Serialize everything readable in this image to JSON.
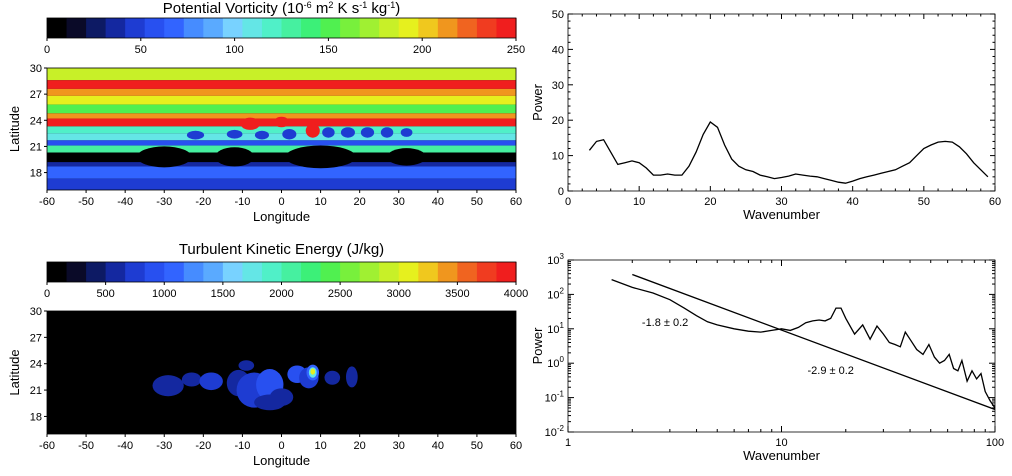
{
  "colorbar_colors": [
    "#000000",
    "#0a0a28",
    "#0d1a64",
    "#1428a0",
    "#1e3cd2",
    "#2850f0",
    "#3264ff",
    "#468cff",
    "#5aaaff",
    "#78d2ff",
    "#64e6e6",
    "#50f0c8",
    "#46f0a0",
    "#3cf078",
    "#50f050",
    "#78f03c",
    "#a0f032",
    "#c8f028",
    "#e6f01e",
    "#f0c81e",
    "#f0961e",
    "#f06420",
    "#f03c20",
    "#f01e1e"
  ],
  "charts": [
    {
      "id": "pv",
      "type": "heatmap",
      "title_parts": [
        "Potential Vorticity (10",
        "-6",
        " m",
        "2",
        " K s",
        "-1",
        " kg",
        "-1",
        ")"
      ],
      "colorbar": {
        "ticks": [
          "0",
          "50",
          "100",
          "150",
          "200",
          "250"
        ],
        "range": [
          0,
          255
        ]
      },
      "x": {
        "label": "Longitude",
        "range": [
          -60,
          60
        ],
        "ticks": [
          -60,
          -50,
          -40,
          -30,
          -20,
          -10,
          0,
          10,
          20,
          30,
          40,
          50,
          60
        ]
      },
      "y": {
        "label": "Latitude",
        "range": [
          16,
          30
        ],
        "ticks": [
          18,
          21,
          24,
          27,
          30
        ]
      },
      "bands": [
        {
          "lat_from": 28.6,
          "lat_to": 30.0,
          "color": "#c8f028"
        },
        {
          "lat_from": 27.6,
          "lat_to": 28.6,
          "color": "#f01e1e"
        },
        {
          "lat_from": 26.8,
          "lat_to": 27.6,
          "color": "#f0961e"
        },
        {
          "lat_from": 25.8,
          "lat_to": 26.8,
          "color": "#e6f01e"
        },
        {
          "lat_from": 24.8,
          "lat_to": 25.8,
          "color": "#50f050"
        },
        {
          "lat_from": 24.2,
          "lat_to": 24.8,
          "color": "#f0961e"
        },
        {
          "lat_from": 23.3,
          "lat_to": 24.2,
          "color": "#f01e1e"
        },
        {
          "lat_from": 22.5,
          "lat_to": 23.3,
          "color": "#50f0c8"
        },
        {
          "lat_from": 21.7,
          "lat_to": 22.5,
          "color": "#64e6e6"
        },
        {
          "lat_from": 21.1,
          "lat_to": 21.7,
          "color": "#2850f0"
        },
        {
          "lat_from": 20.3,
          "lat_to": 21.1,
          "color": "#46f0a0"
        },
        {
          "lat_from": 19.2,
          "lat_to": 20.3,
          "color": "#000000"
        },
        {
          "lat_from": 18.7,
          "lat_to": 19.2,
          "color": "#1428a0"
        },
        {
          "lat_from": 17.3,
          "lat_to": 18.7,
          "color": "#3264ff"
        },
        {
          "lat_from": 16.0,
          "lat_to": 17.3,
          "color": "#1e3cd2"
        }
      ],
      "features": [
        {
          "lon": -30,
          "lat": 19.8,
          "rx": 7,
          "ry": 1.2,
          "color": "#000000"
        },
        {
          "lon": -12,
          "lat": 19.8,
          "rx": 5,
          "ry": 1.1,
          "color": "#000000"
        },
        {
          "lon": 10,
          "lat": 19.8,
          "rx": 9,
          "ry": 1.3,
          "color": "#000000"
        },
        {
          "lon": 32,
          "lat": 19.8,
          "rx": 5,
          "ry": 1.0,
          "color": "#000000"
        },
        {
          "lon": -22,
          "lat": 22.3,
          "rx": 2.2,
          "ry": 0.5,
          "color": "#1e3cd2"
        },
        {
          "lon": -12,
          "lat": 22.4,
          "rx": 2.0,
          "ry": 0.5,
          "color": "#1e3cd2"
        },
        {
          "lon": -5,
          "lat": 22.3,
          "rx": 1.8,
          "ry": 0.5,
          "color": "#1e3cd2"
        },
        {
          "lon": 2,
          "lat": 22.4,
          "rx": 1.8,
          "ry": 0.6,
          "color": "#1e3cd2"
        },
        {
          "lon": 8,
          "lat": 22.8,
          "rx": 1.8,
          "ry": 0.8,
          "color": "#f01e1e"
        },
        {
          "lon": 12,
          "lat": 22.6,
          "rx": 1.6,
          "ry": 0.6,
          "color": "#1e3cd2"
        },
        {
          "lon": 17,
          "lat": 22.6,
          "rx": 1.8,
          "ry": 0.6,
          "color": "#1e3cd2"
        },
        {
          "lon": 22,
          "lat": 22.6,
          "rx": 1.7,
          "ry": 0.6,
          "color": "#1e3cd2"
        },
        {
          "lon": 27,
          "lat": 22.6,
          "rx": 1.6,
          "ry": 0.6,
          "color": "#1e3cd2"
        },
        {
          "lon": 32,
          "lat": 22.6,
          "rx": 1.5,
          "ry": 0.5,
          "color": "#1e3cd2"
        },
        {
          "lon": -8,
          "lat": 23.6,
          "rx": 2.5,
          "ry": 0.7,
          "color": "#f01e1e"
        },
        {
          "lon": 0,
          "lat": 23.8,
          "rx": 2.0,
          "ry": 0.6,
          "color": "#f01e1e"
        }
      ]
    },
    {
      "id": "pv-spectrum",
      "type": "line",
      "x": {
        "label": "Wavenumber",
        "range": [
          0,
          60
        ],
        "ticks": [
          0,
          10,
          20,
          30,
          40,
          50,
          60
        ]
      },
      "y": {
        "label": "Power",
        "range": [
          0,
          50
        ],
        "ticks": [
          0,
          10,
          20,
          30,
          40,
          50
        ]
      },
      "series": [
        {
          "x": [
            3,
            4,
            5,
            6,
            7,
            8,
            9,
            10,
            11,
            12,
            13,
            14,
            15,
            16,
            17,
            18,
            19,
            20,
            21,
            22,
            23,
            24,
            25,
            26,
            27,
            28,
            29,
            30,
            31,
            32,
            33,
            34,
            35,
            36,
            37,
            38,
            39,
            40,
            41,
            42,
            43,
            44,
            45,
            46,
            47,
            48,
            49,
            50,
            51,
            52,
            53,
            54,
            55,
            56,
            57,
            58,
            59
          ],
          "y": [
            11.5,
            14,
            14.5,
            11,
            7.5,
            8,
            8.5,
            8,
            6.5,
            4.5,
            4.5,
            4.8,
            4.5,
            4.5,
            7,
            11,
            16,
            19.5,
            18,
            13,
            9,
            7,
            6,
            5.5,
            4.5,
            4,
            3.5,
            3.8,
            4.2,
            4.8,
            4.5,
            4.2,
            4,
            3.5,
            3,
            2.5,
            2.2,
            2.8,
            3.5,
            4,
            4.5,
            5,
            5.5,
            6,
            7,
            8,
            10,
            12,
            13,
            13.8,
            14,
            13.8,
            12.5,
            10.5,
            8,
            6,
            4
          ]
        }
      ]
    },
    {
      "id": "tke",
      "type": "heatmap",
      "title": "Turbulent Kinetic Energy (J/kg)",
      "colorbar": {
        "ticks": [
          "0",
          "500",
          "1000",
          "1500",
          "2000",
          "2500",
          "3000",
          "3500",
          "4000"
        ],
        "range": [
          0,
          4000
        ]
      },
      "x": {
        "label": "Longitude",
        "range": [
          -60,
          60
        ],
        "ticks": [
          -60,
          -50,
          -40,
          -30,
          -20,
          -10,
          0,
          10,
          20,
          30,
          40,
          50,
          60
        ]
      },
      "y": {
        "label": "Latitude",
        "range": [
          16,
          30
        ],
        "ticks": [
          18,
          21,
          24,
          27,
          30
        ]
      },
      "features": [
        {
          "lon": -29,
          "lat": 21.5,
          "rx": 4.0,
          "ry": 1.2,
          "color": "#1428a0"
        },
        {
          "lon": -23,
          "lat": 22.2,
          "rx": 2.5,
          "ry": 0.8,
          "color": "#1428a0"
        },
        {
          "lon": -18,
          "lat": 22.0,
          "rx": 3.0,
          "ry": 1.0,
          "color": "#1e3cd2"
        },
        {
          "lon": -11,
          "lat": 21.8,
          "rx": 3.0,
          "ry": 1.5,
          "color": "#1428a0"
        },
        {
          "lon": -7,
          "lat": 21.0,
          "rx": 4.5,
          "ry": 2.0,
          "color": "#1e3cd2"
        },
        {
          "lon": -3,
          "lat": 21.6,
          "rx": 3.5,
          "ry": 1.8,
          "color": "#2850f0"
        },
        {
          "lon": 0,
          "lat": 20.2,
          "rx": 3.0,
          "ry": 1.0,
          "color": "#1428a0"
        },
        {
          "lon": 4,
          "lat": 22.8,
          "rx": 2.5,
          "ry": 1.0,
          "color": "#2850f0"
        },
        {
          "lon": 7,
          "lat": 22.4,
          "rx": 2.5,
          "ry": 1.2,
          "color": "#1e3cd2"
        },
        {
          "lon": 8,
          "lat": 23.0,
          "rx": 1.6,
          "ry": 0.9,
          "color": "#3264ff"
        },
        {
          "lon": 8,
          "lat": 23.0,
          "rx": 1.0,
          "ry": 0.6,
          "color": "#64e6e6"
        },
        {
          "lon": 8,
          "lat": 23.1,
          "rx": 0.6,
          "ry": 0.35,
          "color": "#e6f01e"
        },
        {
          "lon": 13,
          "lat": 22.4,
          "rx": 2.0,
          "ry": 0.8,
          "color": "#1428a0"
        },
        {
          "lon": 18,
          "lat": 22.5,
          "rx": 1.5,
          "ry": 1.2,
          "color": "#1428a0"
        },
        {
          "lon": -3,
          "lat": 19.6,
          "rx": 4.0,
          "ry": 0.9,
          "color": "#1428a0"
        },
        {
          "lon": -9,
          "lat": 23.8,
          "rx": 2.0,
          "ry": 0.6,
          "color": "#1428a0"
        }
      ]
    },
    {
      "id": "tke-spectrum",
      "type": "line",
      "x": {
        "label": "Wavenumber",
        "scale": "log",
        "range": [
          1,
          100
        ],
        "ticks": [
          1,
          10,
          100
        ],
        "tick_labels": [
          "1",
          "10",
          "100"
        ]
      },
      "y": {
        "label": "Power",
        "scale": "log",
        "range": [
          0.01,
          1000
        ],
        "tick_labels": [
          [
            "10",
            "-2"
          ],
          [
            "10",
            "-1"
          ],
          [
            "10",
            "0"
          ],
          [
            "10",
            "1"
          ],
          [
            "10",
            "2"
          ],
          [
            "10",
            "3"
          ]
        ]
      },
      "series": [
        {
          "x": [
            1.6,
            2,
            2.5,
            3,
            3.5,
            4,
            4.5,
            5,
            6,
            7,
            8,
            9,
            10,
            11,
            12,
            13,
            14,
            15,
            16,
            17,
            18,
            19,
            20,
            22,
            24,
            26,
            28,
            30,
            32,
            34,
            36,
            38,
            40,
            43,
            46,
            49,
            52,
            55,
            58,
            61,
            64,
            67,
            70,
            74,
            78,
            82,
            86,
            90,
            95,
            100
          ],
          "y": [
            270,
            160,
            110,
            70,
            40,
            24,
            16,
            13,
            10,
            8.5,
            8,
            9,
            10,
            9,
            11,
            15,
            17,
            18,
            17,
            20,
            40,
            40,
            20,
            7,
            13,
            5,
            12,
            7,
            4,
            3.5,
            3,
            8,
            5,
            2.5,
            1.8,
            3.5,
            1.5,
            1,
            1.2,
            1.8,
            0.7,
            0.6,
            1.2,
            0.3,
            0.6,
            0.35,
            0.5,
            0.15,
            0.08,
            0.05
          ]
        },
        {
          "x": [
            2,
            100
          ],
          "y": [
            380,
            0.045
          ]
        }
      ],
      "annotations": [
        {
          "text": "-1.8 ± 0.2",
          "x": 2.85,
          "y": 12
        },
        {
          "text": "-2.9 ± 0.2",
          "x": 17,
          "y": 0.48
        }
      ]
    }
  ]
}
